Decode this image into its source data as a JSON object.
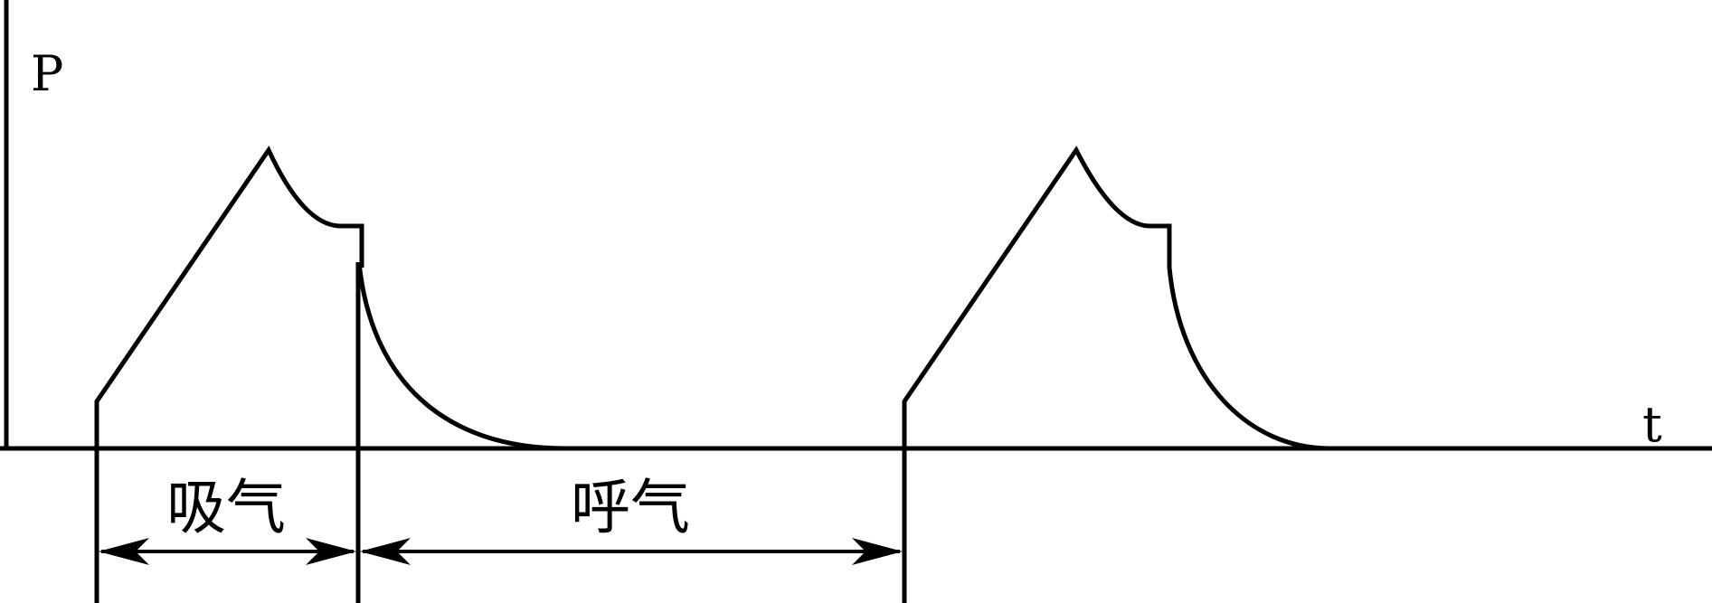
{
  "axes": {
    "y_label": "P",
    "x_label": "t"
  },
  "phases": {
    "inspiration_label": "吸气",
    "expiration_label": "呼气"
  },
  "colors": {
    "line": "#000000",
    "background": "#ffffff"
  }
}
